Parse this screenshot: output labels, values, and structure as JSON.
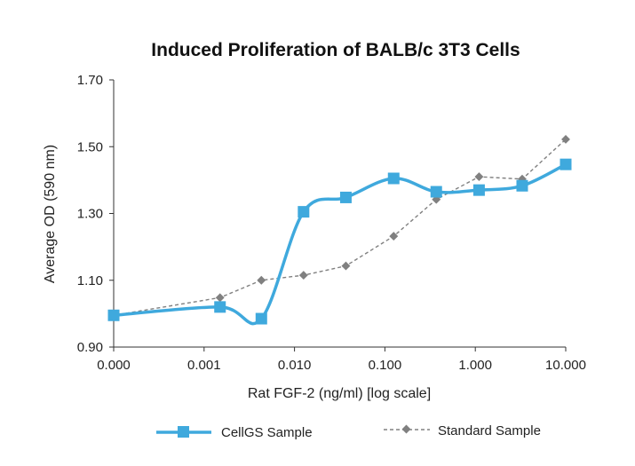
{
  "chart_data": {
    "type": "line",
    "title": "Induced Proliferation of BALB/c 3T3 Cells",
    "xlabel": "Rat FGF-2 (ng/ml) [log scale]",
    "ylabel": "Average OD (590 nm)",
    "x_scale": "log",
    "x_tick_labels": [
      "0.000",
      "0.001",
      "0.010",
      "0.100",
      "1.000",
      "10.000"
    ],
    "y_tick_labels": [
      "0.90",
      "1.10",
      "1.30",
      "1.50",
      "1.70"
    ],
    "xlim": [
      0.0001,
      10
    ],
    "ylim": [
      0.9,
      1.7
    ],
    "grid": false,
    "legend_position": "bottom",
    "series": [
      {
        "name": "CellGS Sample",
        "color": "#3fa9dd",
        "marker": "square",
        "style": "solid-smooth",
        "x": [
          0.0001,
          0.0015,
          0.0043,
          0.0126,
          0.037,
          0.125,
          0.37,
          1.1,
          3.3,
          10
        ],
        "y": [
          0.995,
          1.02,
          0.985,
          1.305,
          1.348,
          1.405,
          1.365,
          1.37,
          1.383,
          1.447
        ]
      },
      {
        "name": "Standard Sample",
        "color": "#808080",
        "marker": "diamond",
        "style": "dashed",
        "x": [
          0.0001,
          0.0015,
          0.0043,
          0.0126,
          0.037,
          0.125,
          0.37,
          1.1,
          3.3,
          10
        ],
        "y": [
          0.995,
          1.048,
          1.1,
          1.115,
          1.143,
          1.232,
          1.342,
          1.41,
          1.403,
          1.522
        ]
      }
    ]
  }
}
